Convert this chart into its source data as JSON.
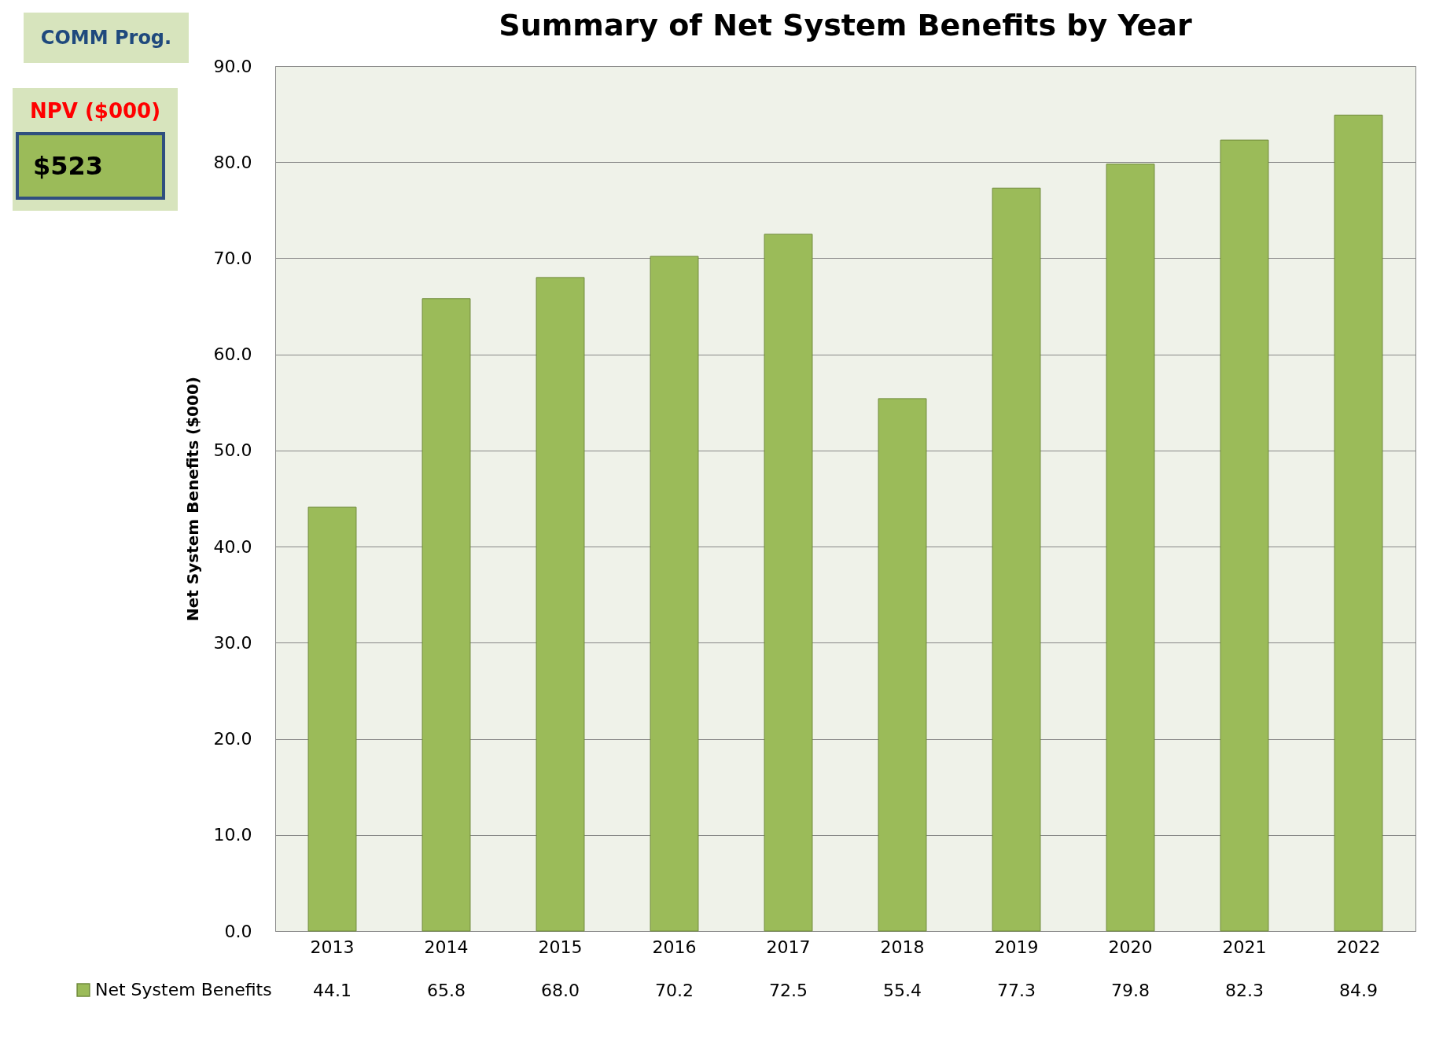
{
  "chart_data": {
    "type": "bar",
    "title": "Summary of Net System Benefits by Year",
    "ylabel": "Net System Benefits ($000)",
    "annotations": [
      "COMM Prog.",
      "NPV ($000)",
      "$523"
    ],
    "categories": [
      "2013",
      "2014",
      "2015",
      "2016",
      "2017",
      "2018",
      "2019",
      "2020",
      "2021",
      "2022"
    ],
    "series": [
      {
        "name": "Net System Benefits",
        "color": "#9bbb59",
        "values": [
          44.1,
          65.8,
          68.0,
          70.2,
          72.5,
          55.4,
          77.3,
          79.8,
          82.3,
          84.9
        ],
        "value_labels": [
          "44.1",
          "65.8",
          "68.0",
          "70.2",
          "72.5",
          "55.4",
          "77.3",
          "79.8",
          "82.3",
          "84.9"
        ]
      }
    ],
    "ylim": [
      0,
      90
    ],
    "yticks": [
      {
        "value": 0,
        "label": "0.0"
      },
      {
        "value": 10,
        "label": "10.0"
      },
      {
        "value": 20,
        "label": "20.0"
      },
      {
        "value": 30,
        "label": "30.0"
      },
      {
        "value": 40,
        "label": "40.0"
      },
      {
        "value": 50,
        "label": "50.0"
      },
      {
        "value": 60,
        "label": "60.0"
      },
      {
        "value": 70,
        "label": "70.0"
      },
      {
        "value": 80,
        "label": "80.0"
      },
      {
        "value": 90,
        "label": "90.0"
      }
    ],
    "grid": "y",
    "legend": "bottom left"
  }
}
